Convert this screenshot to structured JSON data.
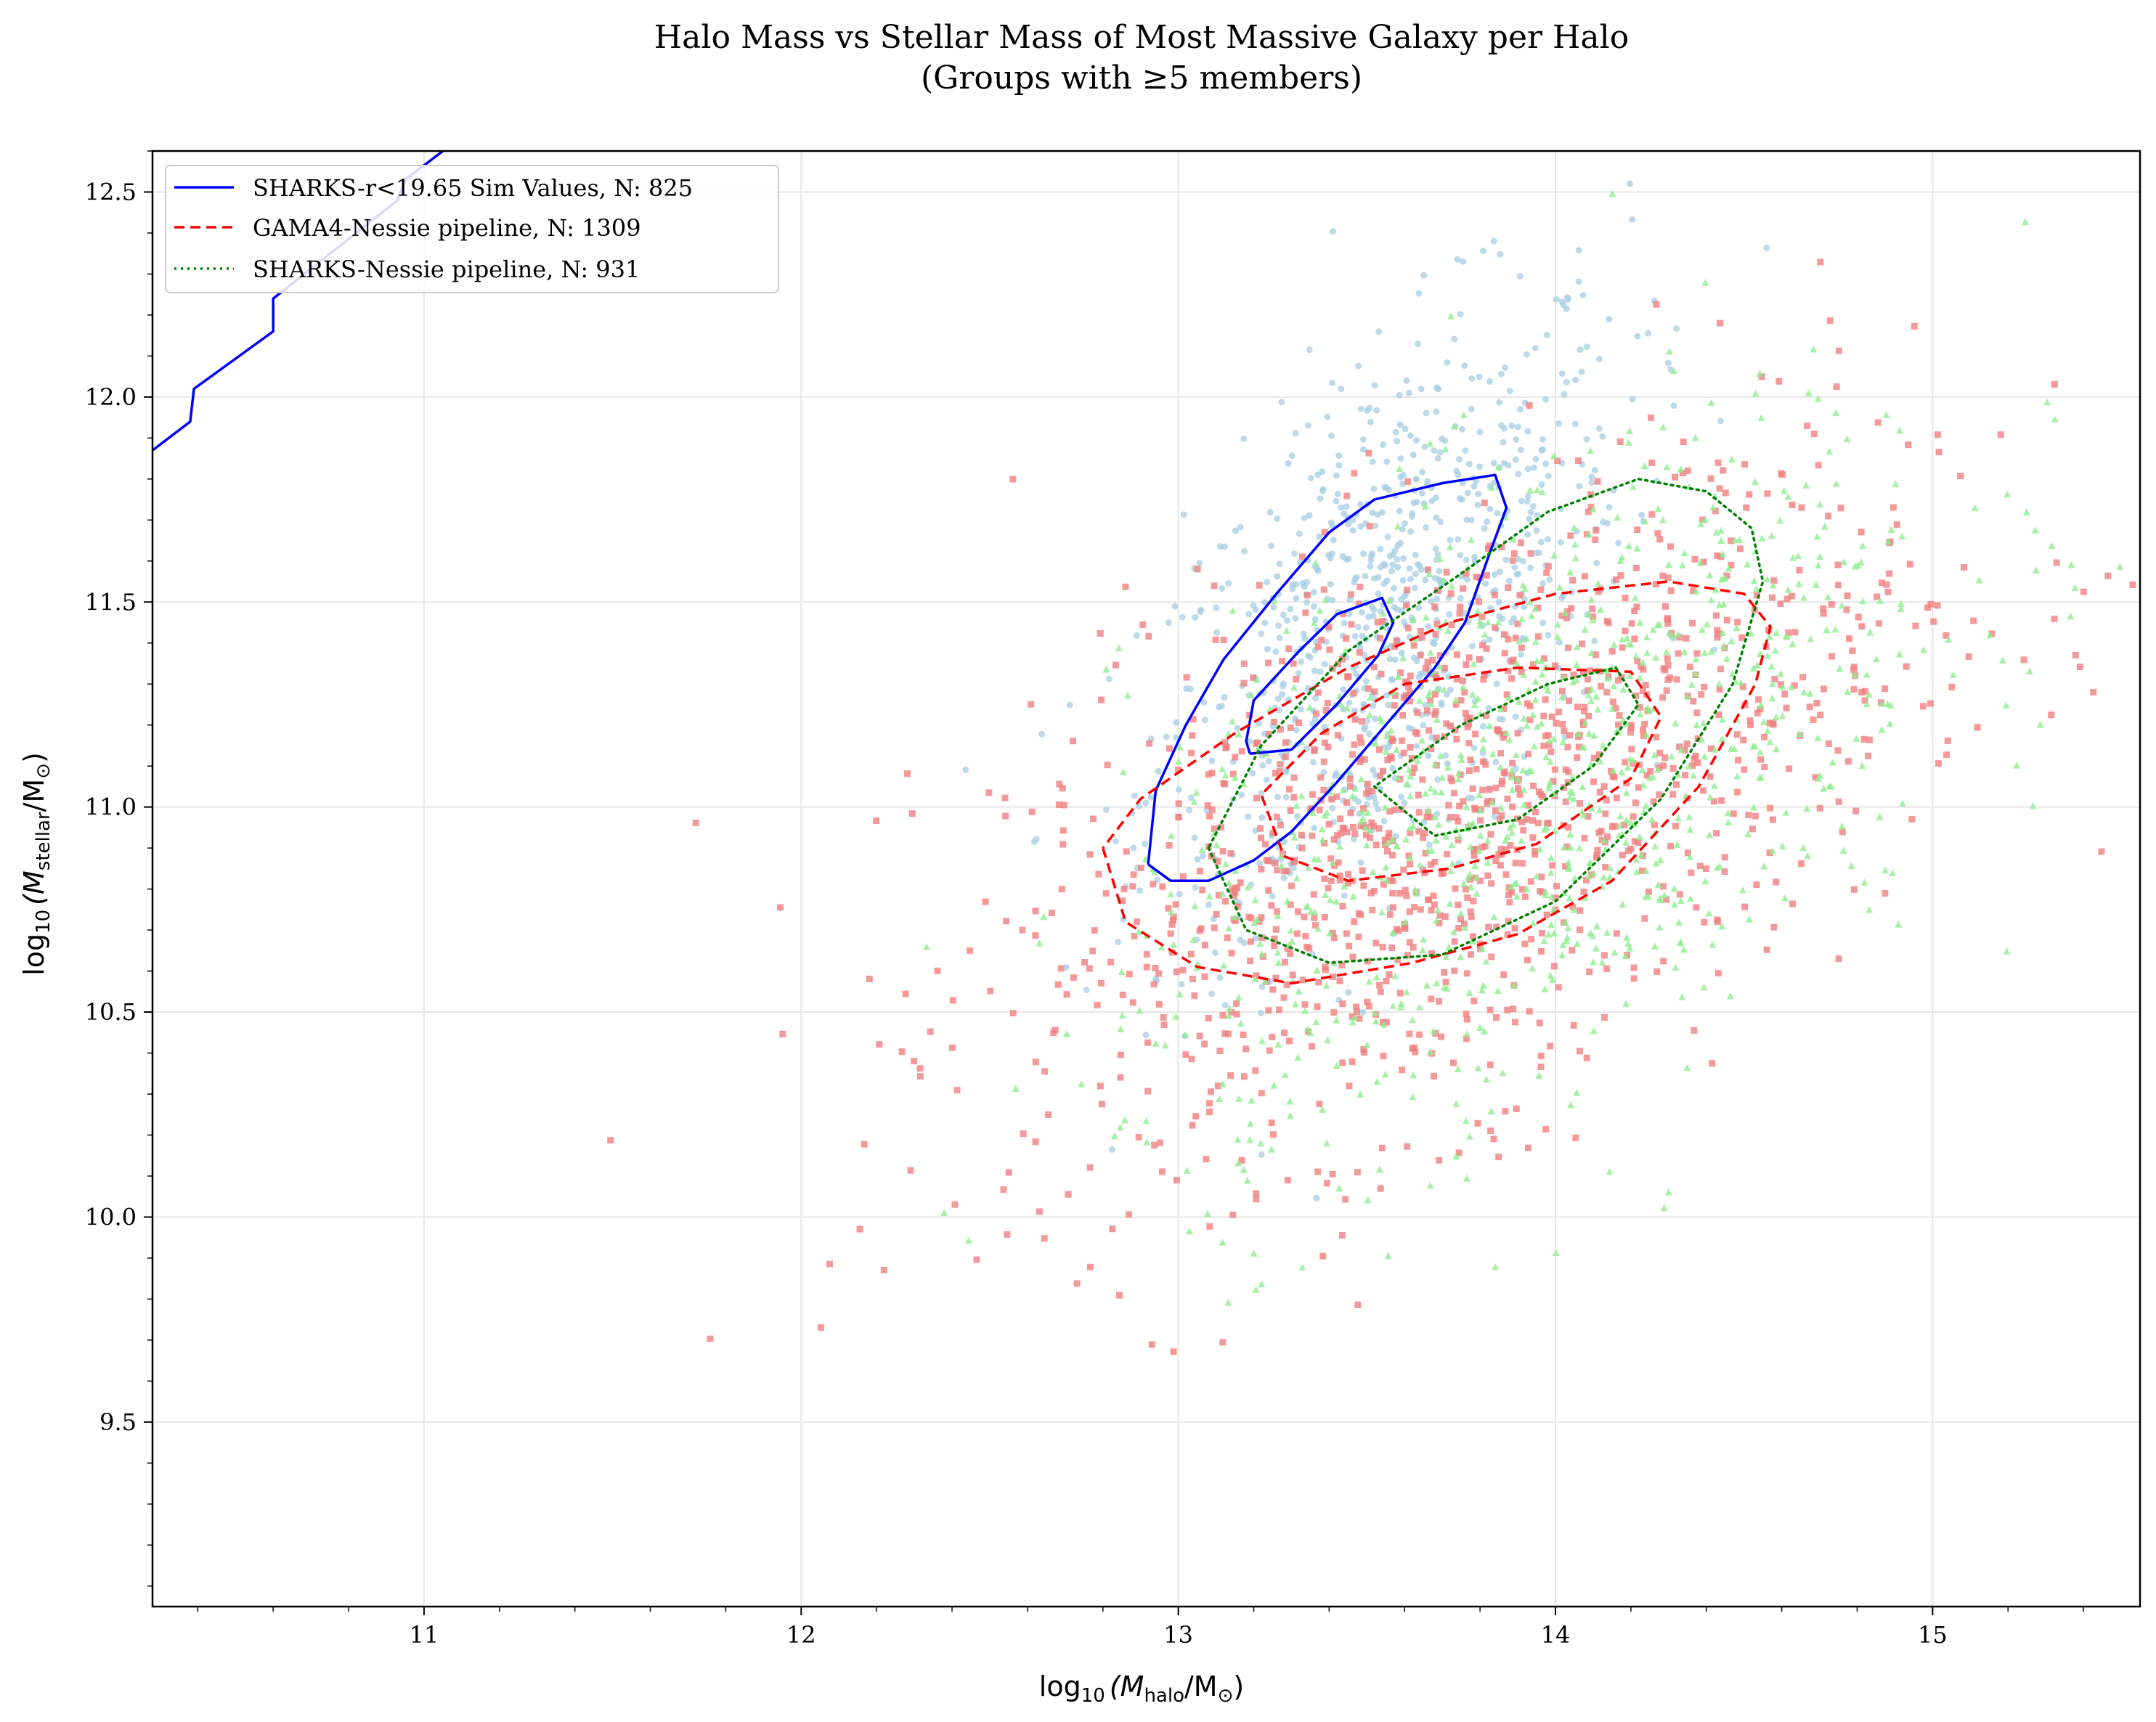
{
  "chart_data": {
    "type": "scatter",
    "title_line1": "Halo Mass vs Stellar Mass of Most Massive Galaxy per Halo",
    "title_line2": "(Groups with ≥5 members)",
    "xlabel_prefix": "log",
    "xlabel_sub10": "10",
    "xlabel_body": "(M",
    "xlabel_sub": "halo",
    "xlabel_unit": "/M",
    "xlabel_sun": "⊙",
    "xlabel_close": ")",
    "ylabel_prefix": "log",
    "ylabel_sub10": "10",
    "ylabel_body": "(M",
    "ylabel_sub": "stellar",
    "ylabel_unit": "/M",
    "ylabel_sun": "⊙",
    "ylabel_close": ")",
    "xlim": [
      10.28,
      15.55
    ],
    "ylim": [
      9.05,
      12.6
    ],
    "x_ticks": [
      11,
      12,
      13,
      14,
      15
    ],
    "x_tick_labels": [
      "11",
      "12",
      "13",
      "14",
      "15"
    ],
    "y_ticks": [
      9.5,
      10.0,
      10.5,
      11.0,
      11.5,
      12.0,
      12.5
    ],
    "y_tick_labels": [
      "9.5",
      "10.0",
      "10.5",
      "11.0",
      "11.5",
      "12.0",
      "12.5"
    ],
    "grid": true,
    "legend_position": "top-left",
    "colors": {
      "sharks_sim": "#0000ff",
      "gama_nessie": "#ff0000",
      "sharks_nessie": "#008000",
      "sim_points": "#a6cee3",
      "gama_points": "#f08080",
      "sharks_points": "#90ee90"
    },
    "series": [
      {
        "name": "SHARKS-r<19.65 Sim Values, N: 825",
        "style": "solid",
        "color": "#0000ff",
        "n_points": 825,
        "point_marker": "circle",
        "point_center": [
          13.55,
          11.45
        ],
        "point_spread": [
          0.32,
          0.38
        ],
        "contours": [
          [
            [
              12.92,
              10.86
            ],
            [
              12.98,
              10.82
            ],
            [
              13.08,
              10.82
            ],
            [
              13.2,
              10.87
            ],
            [
              13.3,
              10.94
            ],
            [
              13.42,
              11.06
            ],
            [
              13.55,
              11.2
            ],
            [
              13.68,
              11.34
            ],
            [
              13.76,
              11.45
            ],
            [
              13.83,
              11.63
            ],
            [
              13.87,
              11.73
            ],
            [
              13.84,
              11.81
            ],
            [
              13.7,
              11.79
            ],
            [
              13.52,
              11.75
            ],
            [
              13.4,
              11.67
            ],
            [
              13.26,
              11.52
            ],
            [
              13.12,
              11.36
            ],
            [
              13.02,
              11.2
            ],
            [
              12.94,
              11.04
            ],
            [
              12.92,
              10.86
            ]
          ],
          [
            [
              13.19,
              11.13
            ],
            [
              13.3,
              11.14
            ],
            [
              13.42,
              11.25
            ],
            [
              13.53,
              11.37
            ],
            [
              13.57,
              11.45
            ],
            [
              13.54,
              11.51
            ],
            [
              13.42,
              11.47
            ],
            [
              13.32,
              11.38
            ],
            [
              13.2,
              11.26
            ],
            [
              13.18,
              11.16
            ],
            [
              13.19,
              11.13
            ]
          ],
          [
            [
              10.28,
              11.87
            ],
            [
              10.38,
              11.94
            ],
            [
              10.39,
              12.02
            ],
            [
              10.6,
              12.16
            ],
            [
              10.6,
              12.24
            ],
            [
              10.93,
              12.48
            ],
            [
              10.95,
              12.53
            ],
            [
              11.05,
              12.6
            ]
          ]
        ]
      },
      {
        "name": "GAMA4-Nessie pipeline, N: 1309",
        "style": "dashed",
        "color": "#ff0000",
        "n_points": 1309,
        "point_marker": "square",
        "point_center": [
          13.75,
          11.0
        ],
        "point_spread": [
          0.6,
          0.42
        ],
        "contours": [
          [
            [
              12.8,
              10.9
            ],
            [
              12.86,
              10.72
            ],
            [
              13.05,
              10.61
            ],
            [
              13.3,
              10.57
            ],
            [
              13.62,
              10.62
            ],
            [
              13.9,
              10.69
            ],
            [
              14.15,
              10.82
            ],
            [
              14.38,
              11.05
            ],
            [
              14.53,
              11.3
            ],
            [
              14.57,
              11.44
            ],
            [
              14.5,
              11.52
            ],
            [
              14.3,
              11.55
            ],
            [
              14.0,
              11.52
            ],
            [
              13.72,
              11.45
            ],
            [
              13.45,
              11.34
            ],
            [
              13.15,
              11.18
            ],
            [
              12.9,
              11.02
            ],
            [
              12.8,
              10.9
            ]
          ],
          [
            [
              13.28,
              10.88
            ],
            [
              13.45,
              10.82
            ],
            [
              13.72,
              10.85
            ],
            [
              13.95,
              10.91
            ],
            [
              14.2,
              11.07
            ],
            [
              14.28,
              11.22
            ],
            [
              14.2,
              11.33
            ],
            [
              13.9,
              11.34
            ],
            [
              13.6,
              11.3
            ],
            [
              13.38,
              11.18
            ],
            [
              13.22,
              11.03
            ],
            [
              13.28,
              10.88
            ]
          ]
        ]
      },
      {
        "name": "SHARKS-Nessie pipeline, N: 931",
        "style": "dotted",
        "color": "#008000",
        "n_points": 931,
        "point_marker": "triangle",
        "point_center": [
          13.95,
          11.05
        ],
        "point_spread": [
          0.55,
          0.45
        ],
        "contours": [
          [
            [
              13.08,
              10.9
            ],
            [
              13.18,
              10.7
            ],
            [
              13.4,
              10.62
            ],
            [
              13.7,
              10.64
            ],
            [
              14.0,
              10.77
            ],
            [
              14.28,
              11.02
            ],
            [
              14.47,
              11.3
            ],
            [
              14.55,
              11.55
            ],
            [
              14.52,
              11.68
            ],
            [
              14.4,
              11.77
            ],
            [
              14.22,
              11.8
            ],
            [
              13.98,
              11.72
            ],
            [
              13.72,
              11.55
            ],
            [
              13.45,
              11.38
            ],
            [
              13.22,
              11.15
            ],
            [
              13.08,
              10.9
            ]
          ],
          [
            [
              13.52,
              11.05
            ],
            [
              13.68,
              10.93
            ],
            [
              13.9,
              10.97
            ],
            [
              14.1,
              11.1
            ],
            [
              14.22,
              11.25
            ],
            [
              14.16,
              11.34
            ],
            [
              13.98,
              11.3
            ],
            [
              13.75,
              11.2
            ],
            [
              13.52,
              11.05
            ]
          ]
        ]
      }
    ]
  }
}
